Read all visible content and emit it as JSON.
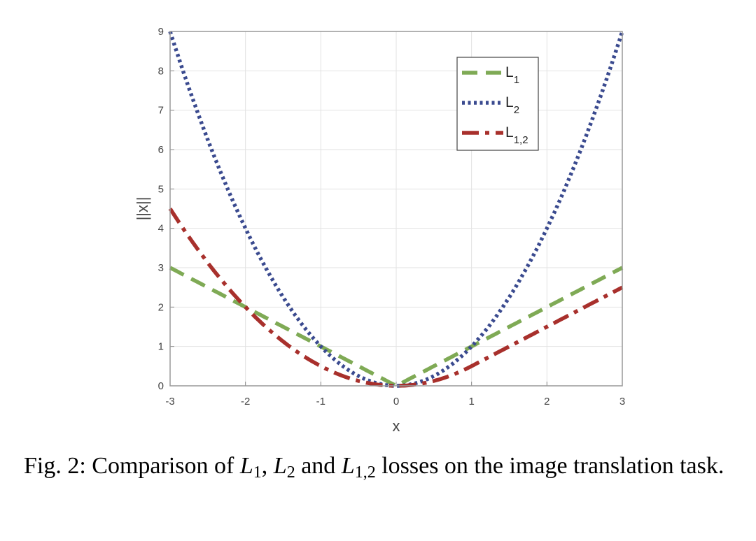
{
  "chart_data": {
    "type": "line",
    "xlabel": "x",
    "ylabel": "||x||",
    "xlim": [
      -3,
      3
    ],
    "ylim": [
      0,
      9
    ],
    "xticks": [
      -3,
      -2,
      -1,
      0,
      1,
      2,
      3
    ],
    "yticks": [
      0,
      1,
      2,
      3,
      4,
      5,
      6,
      7,
      8,
      9
    ],
    "grid": true,
    "legend_position": "top-right",
    "series": [
      {
        "name": "L1",
        "label_main": "L",
        "label_sub": "1",
        "color": "#7faa55",
        "dash": "dashed",
        "formula": "abs(x)",
        "x": [
          -3,
          -2,
          -1,
          0,
          1,
          2,
          3
        ],
        "y": [
          3,
          2,
          1,
          0,
          1,
          2,
          3
        ]
      },
      {
        "name": "L2",
        "label_main": "L",
        "label_sub": "2",
        "color": "#3a4a8f",
        "dash": "dotted",
        "formula": "x^2",
        "x": [
          -3,
          -2,
          -1,
          0,
          1,
          2,
          3
        ],
        "y": [
          9,
          4,
          1,
          0,
          1,
          4,
          9
        ]
      },
      {
        "name": "L1,2",
        "label_main": "L",
        "label_sub": "1,2",
        "color": "#a8302c",
        "dash": "dashdot",
        "formula": "x^2/2 for x<=0; x-0.5 for x>1; x^2/2 for 0<x<=1",
        "x": [
          -3,
          -2,
          -1,
          0,
          1,
          2,
          3
        ],
        "y": [
          4.5,
          2,
          0.5,
          0,
          0.5,
          1.5,
          2.5
        ]
      }
    ]
  },
  "caption": {
    "prefix": "Fig. 2: Comparison of ",
    "l1_main": "L",
    "l1_sub": "1",
    "sep1": ", ",
    "l2_main": "L",
    "l2_sub": "2",
    "sep2": " and ",
    "l12_main": "L",
    "l12_sub": "1,2",
    "suffix": " losses on the image translation task."
  }
}
